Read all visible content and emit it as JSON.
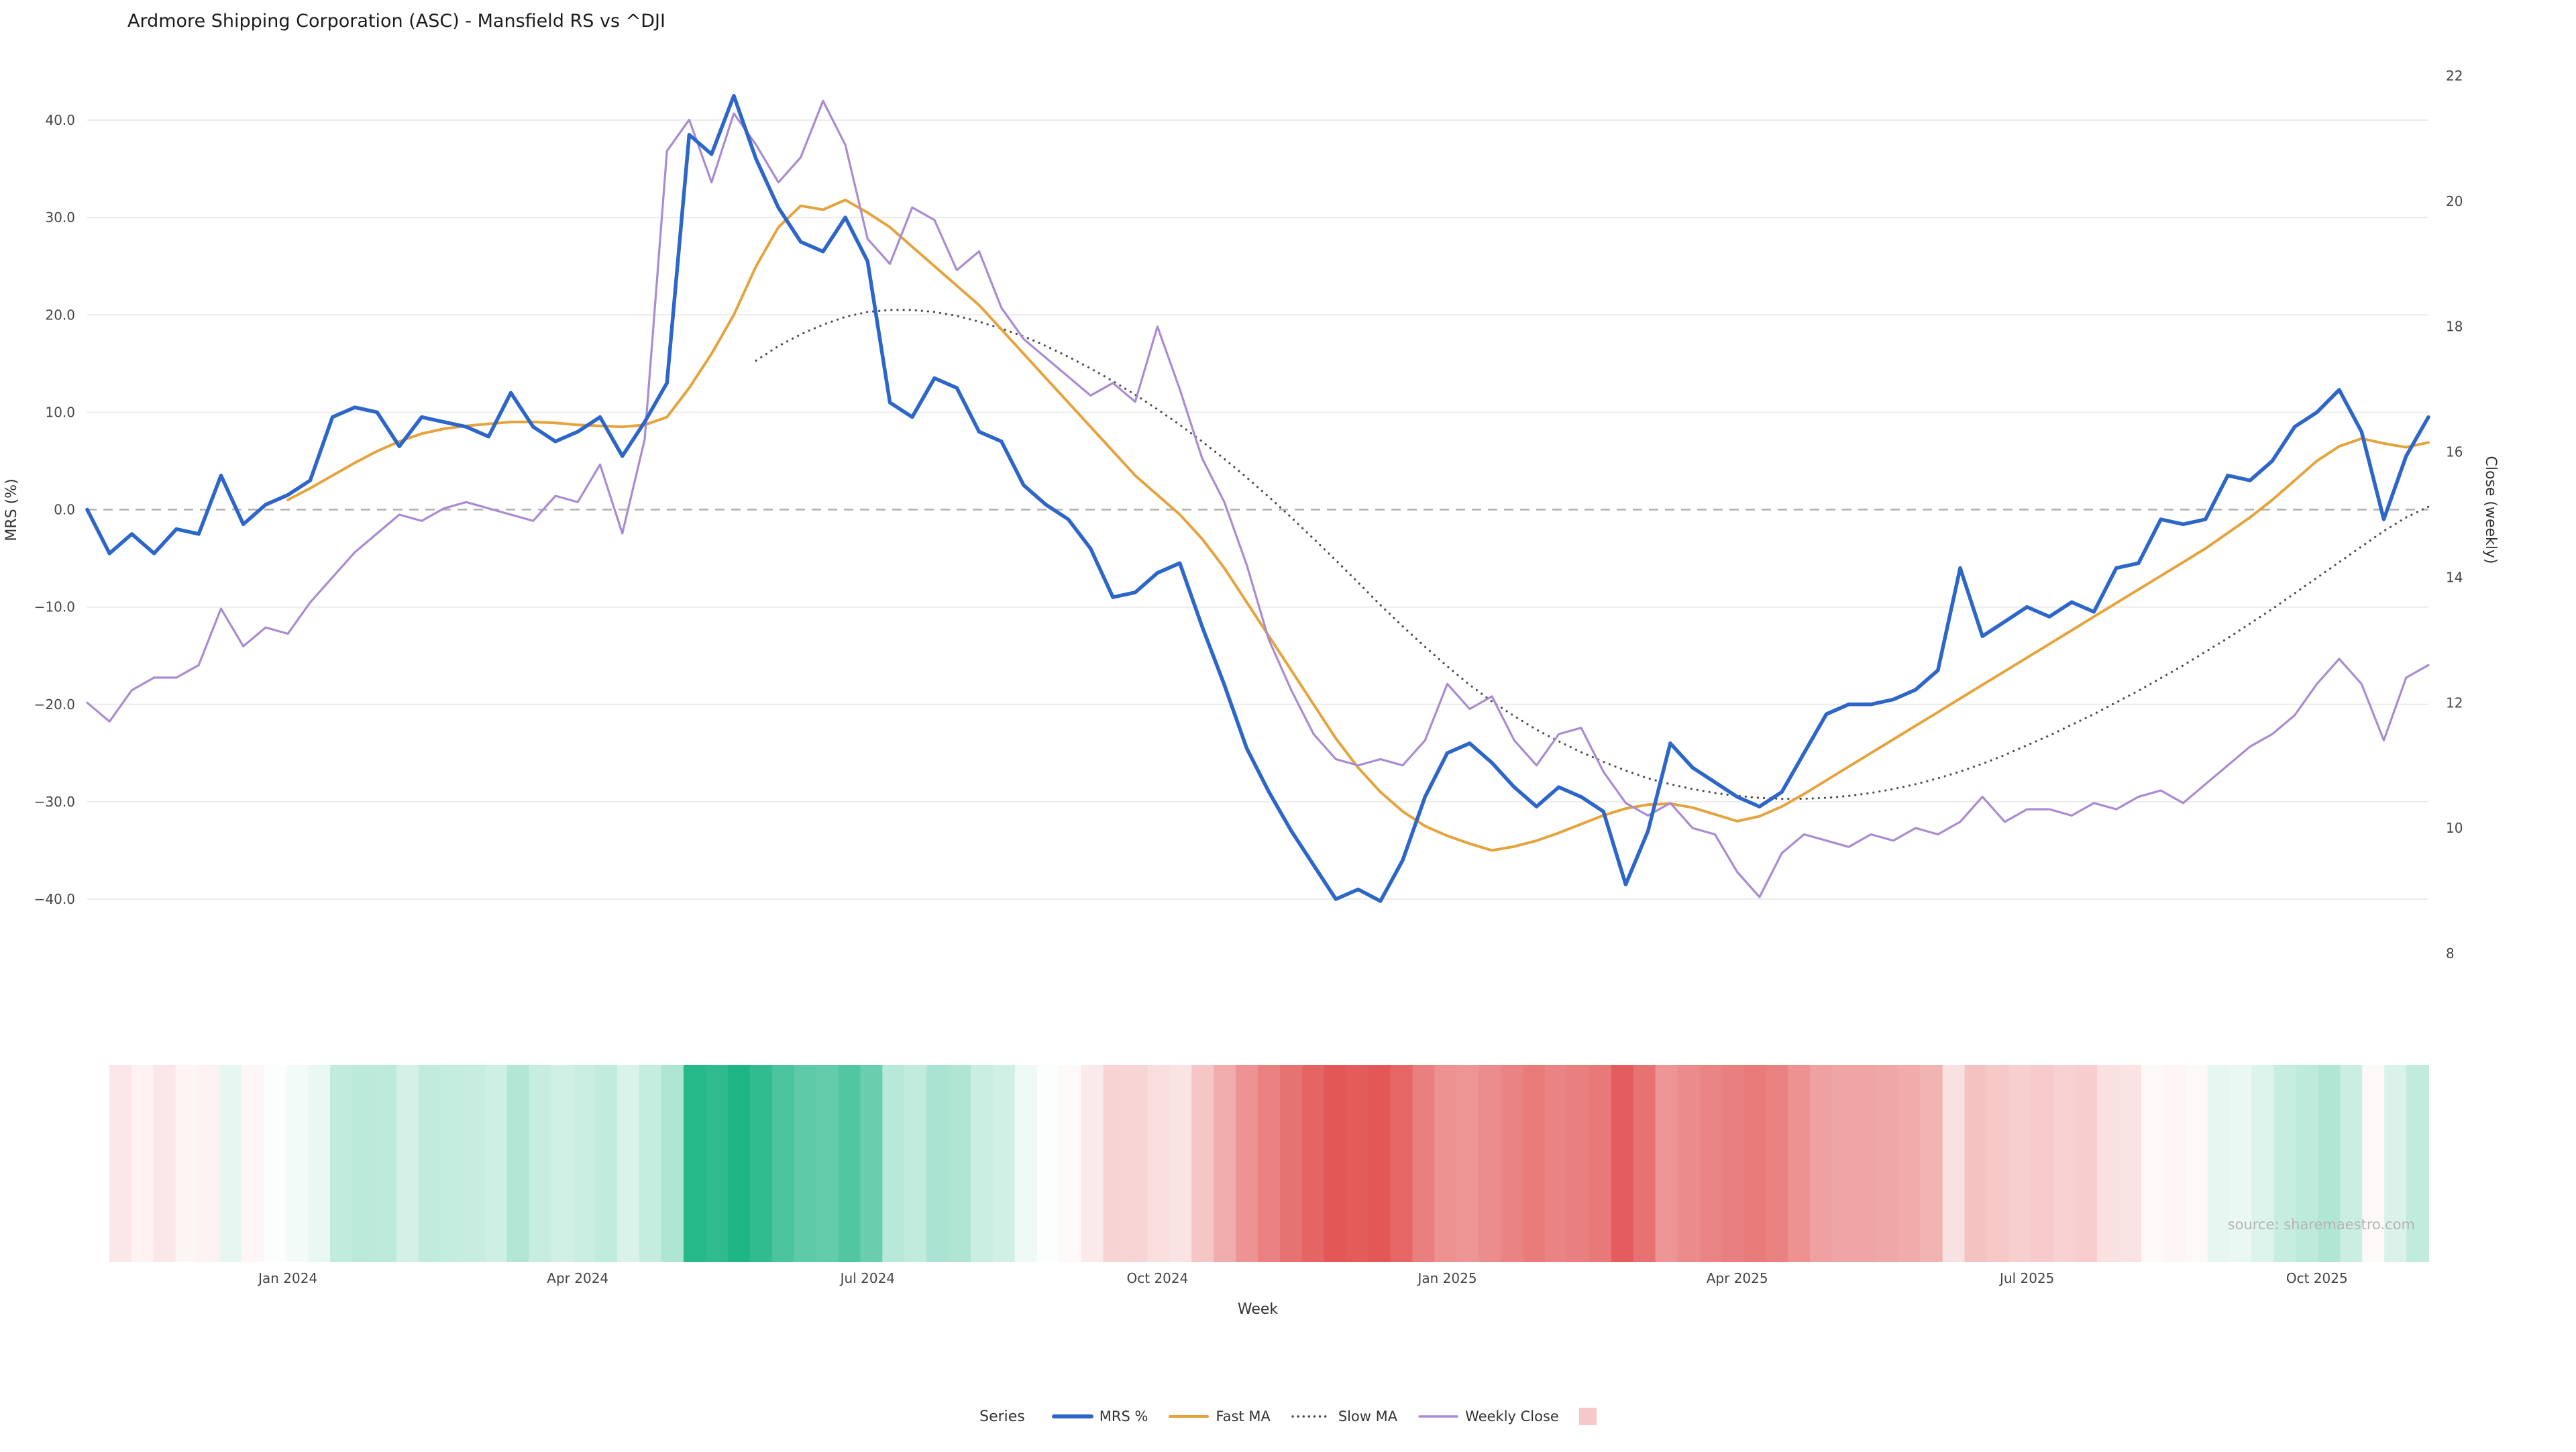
{
  "page": {
    "source": "source: sharemaestro.com"
  },
  "chart_data": {
    "type": "line",
    "title": "Ardmore Shipping Corporation (ASC) - Mansfield RS vs ^DJI",
    "xlabel": "Week",
    "n_points": 106,
    "x_ticks": [
      {
        "week": 9,
        "label": "Jan 2024"
      },
      {
        "week": 22,
        "label": "Apr 2024"
      },
      {
        "week": 35,
        "label": "Jul 2024"
      },
      {
        "week": 48,
        "label": "Oct 2024"
      },
      {
        "week": 61,
        "label": "Jan 2025"
      },
      {
        "week": 74,
        "label": "Apr 2025"
      },
      {
        "week": 87,
        "label": "Jul 2025"
      },
      {
        "week": 100,
        "label": "Oct 2025"
      }
    ],
    "y_left": {
      "label": "MRS (%)",
      "min": -40,
      "max": 40,
      "ticks": [
        {
          "value": 40,
          "label": "40.0"
        },
        {
          "value": 30,
          "label": "30.0"
        },
        {
          "value": 20,
          "label": "20.0"
        },
        {
          "value": 10,
          "label": "10.0"
        },
        {
          "value": 0,
          "label": "0.0"
        },
        {
          "value": -10,
          "label": "−10.0"
        },
        {
          "value": -20,
          "label": "−20.0"
        },
        {
          "value": -30,
          "label": "−30.0"
        },
        {
          "value": -40,
          "label": "−40.0"
        }
      ]
    },
    "y_right": {
      "label": "Close (weekly)",
      "min": 8,
      "max": 22,
      "ticks": [
        {
          "value": 22,
          "label": "22"
        },
        {
          "value": 20,
          "label": "20"
        },
        {
          "value": 18,
          "label": "18"
        },
        {
          "value": 16,
          "label": "16"
        },
        {
          "value": 14,
          "label": "14"
        },
        {
          "value": 12,
          "label": "12"
        },
        {
          "value": 10,
          "label": "10"
        },
        {
          "value": 8,
          "label": "8"
        }
      ]
    },
    "zero_line": {
      "value": 0,
      "style": "dashed",
      "color": "#b0b0b0"
    },
    "grid_color": "#ebebeb",
    "series": [
      {
        "name": "MRS %",
        "axis": "left",
        "color": "#2d66c9",
        "style": "solid",
        "width": 5.5,
        "values": [
          0.0,
          -4.5,
          -2.5,
          -4.5,
          -2.0,
          -2.5,
          3.5,
          -1.5,
          0.5,
          1.5,
          3.0,
          9.5,
          10.5,
          10.0,
          6.5,
          9.5,
          9.0,
          8.5,
          7.5,
          12.0,
          8.5,
          7.0,
          8.0,
          9.5,
          5.5,
          9.0,
          13.0,
          38.5,
          36.5,
          42.5,
          36.0,
          31.0,
          27.5,
          26.5,
          30.0,
          25.5,
          11.0,
          9.5,
          13.5,
          12.5,
          8.0,
          7.0,
          2.5,
          0.5,
          -1.0,
          -4.0,
          -9.0,
          -8.5,
          -6.5,
          -5.5,
          -12.0,
          -18.0,
          -24.5,
          -29.0,
          -33.0,
          -36.5,
          -40.0,
          -39.0,
          -40.2,
          -36.0,
          -29.5,
          -25.0,
          -24.0,
          -26.0,
          -28.5,
          -30.5,
          -28.5,
          -29.5,
          -31.0,
          -38.5,
          -33.0,
          -24.0,
          -26.5,
          -28.0,
          -29.5,
          -30.5,
          -29.0,
          -25.0,
          -21.0,
          -20.0,
          -20.0,
          -19.5,
          -18.5,
          -16.5,
          -6.0,
          -13.0,
          -11.5,
          -10.0,
          -11.0,
          -9.5,
          -10.5,
          -6.0,
          -5.5,
          -1.0,
          -1.5,
          -1.0,
          3.5,
          3.0,
          5.0,
          8.5,
          10.0,
          12.3,
          8.0,
          -1.0,
          5.5,
          9.5
        ]
      },
      {
        "name": "Fast MA",
        "axis": "left",
        "color": "#e4a33c",
        "style": "solid",
        "width": 4,
        "values": [
          null,
          null,
          null,
          null,
          null,
          null,
          null,
          null,
          null,
          1.0,
          2.2,
          3.5,
          4.8,
          6.0,
          7.0,
          7.8,
          8.3,
          8.6,
          8.8,
          9.0,
          9.0,
          8.9,
          8.7,
          8.6,
          8.5,
          8.7,
          9.5,
          12.5,
          16.0,
          20.0,
          25.0,
          29.0,
          31.2,
          30.8,
          31.8,
          30.5,
          29.0,
          27.0,
          25.0,
          23.0,
          21.0,
          18.5,
          16.0,
          13.5,
          11.0,
          8.5,
          6.0,
          3.5,
          1.5,
          -0.5,
          -3.0,
          -6.0,
          -9.5,
          -13.0,
          -16.5,
          -20.0,
          -23.5,
          -26.5,
          -29.0,
          -31.0,
          -32.5,
          -33.5,
          -34.3,
          -35.0,
          -34.6,
          -34.0,
          -33.2,
          -32.3,
          -31.4,
          -30.7,
          -30.3,
          -30.2,
          -30.6,
          -31.3,
          -32.0,
          -31.5,
          -30.5,
          -29.2,
          -27.8,
          -26.4,
          -25.0,
          -23.6,
          -22.2,
          -20.8,
          -19.4,
          -18.0,
          -16.6,
          -15.2,
          -13.8,
          -12.4,
          -11.0,
          -9.6,
          -8.2,
          -6.8,
          -5.4,
          -4.0,
          -2.4,
          -0.8,
          1.0,
          3.0,
          5.0,
          6.5,
          7.3,
          6.8,
          6.4,
          6.9
        ]
      },
      {
        "name": "Slow MA",
        "axis": "left",
        "color": "#4a4a4a",
        "style": "dotted",
        "width": 3.2,
        "values": [
          null,
          null,
          null,
          null,
          null,
          null,
          null,
          null,
          null,
          null,
          null,
          null,
          null,
          null,
          null,
          null,
          null,
          null,
          null,
          null,
          null,
          null,
          null,
          null,
          null,
          null,
          null,
          null,
          null,
          null,
          15.3,
          16.8,
          18.0,
          19.0,
          19.8,
          20.3,
          20.5,
          20.5,
          20.3,
          19.9,
          19.3,
          18.6,
          17.8,
          16.8,
          15.7,
          14.5,
          13.2,
          11.8,
          10.3,
          8.7,
          7.0,
          5.2,
          3.3,
          1.3,
          -0.8,
          -3.0,
          -5.2,
          -7.5,
          -9.8,
          -12.0,
          -14.1,
          -16.1,
          -18.0,
          -19.7,
          -21.2,
          -22.6,
          -23.8,
          -24.9,
          -25.9,
          -26.8,
          -27.6,
          -28.2,
          -28.7,
          -29.1,
          -29.4,
          -29.6,
          -29.7,
          -29.7,
          -29.6,
          -29.4,
          -29.1,
          -28.7,
          -28.2,
          -27.6,
          -26.9,
          -26.1,
          -25.2,
          -24.2,
          -23.2,
          -22.1,
          -21.0,
          -19.8,
          -18.6,
          -17.3,
          -16.0,
          -14.6,
          -13.2,
          -11.7,
          -10.2,
          -8.6,
          -7.0,
          -5.4,
          -3.8,
          -2.2,
          -0.8,
          0.3
        ]
      },
      {
        "name": "Weekly Close",
        "axis": "right",
        "color": "#a98bd3",
        "style": "solid",
        "width": 3.2,
        "values": [
          12.0,
          11.7,
          12.2,
          12.4,
          12.4,
          12.6,
          13.5,
          12.9,
          13.2,
          13.1,
          13.6,
          14.0,
          14.4,
          14.7,
          15.0,
          14.9,
          15.1,
          15.2,
          15.1,
          15.0,
          14.9,
          15.3,
          15.2,
          15.8,
          14.7,
          16.2,
          20.8,
          21.3,
          20.3,
          21.4,
          20.9,
          20.3,
          20.7,
          21.6,
          20.9,
          19.4,
          19.0,
          19.9,
          19.7,
          18.9,
          19.2,
          18.3,
          17.8,
          17.5,
          17.2,
          16.9,
          17.1,
          16.8,
          18.0,
          17.0,
          15.9,
          15.2,
          14.2,
          13.0,
          12.2,
          11.5,
          11.1,
          11.0,
          11.1,
          11.0,
          11.4,
          12.3,
          11.9,
          12.1,
          11.4,
          11.0,
          11.5,
          11.6,
          10.9,
          10.4,
          10.2,
          10.4,
          10.0,
          9.9,
          9.3,
          8.9,
          9.6,
          9.9,
          9.8,
          9.7,
          9.9,
          9.8,
          10.0,
          9.9,
          10.1,
          10.5,
          10.1,
          10.3,
          10.3,
          10.2,
          10.4,
          10.3,
          10.5,
          10.6,
          10.4,
          10.7,
          11.0,
          11.3,
          11.5,
          11.8,
          12.3,
          12.7,
          12.3,
          11.4,
          12.4,
          12.6
        ]
      }
    ],
    "heatmap": {
      "source_series": "MRS %",
      "positive_color": "#1db584",
      "negative_color": "#e35757",
      "neutral_color": "#ffffff",
      "max_abs": 40
    },
    "legend": {
      "title": "Series",
      "items": [
        {
          "label": "MRS %",
          "swatch": "line",
          "color": "#2d66c9",
          "width": 6
        },
        {
          "label": "Fast MA",
          "swatch": "line",
          "color": "#e4a33c",
          "width": 4
        },
        {
          "label": "Slow MA",
          "swatch": "dotted",
          "color": "#4a4a4a",
          "width": 3.5
        },
        {
          "label": "Weekly Close",
          "swatch": "line",
          "color": "#a98bd3",
          "width": 3.5
        },
        {
          "label": "",
          "swatch": "square",
          "color": "#f5c9c9",
          "width": 0
        }
      ]
    }
  }
}
